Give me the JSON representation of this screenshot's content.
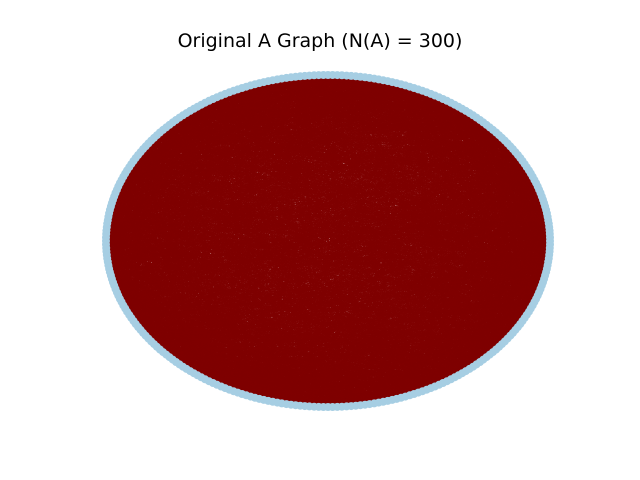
{
  "title": "Original A Graph (N(A) = 300)",
  "graph": {
    "layout": "circular",
    "node_count": 300,
    "node_color": "#a6cee3",
    "edge_color": "#800000"
  }
}
